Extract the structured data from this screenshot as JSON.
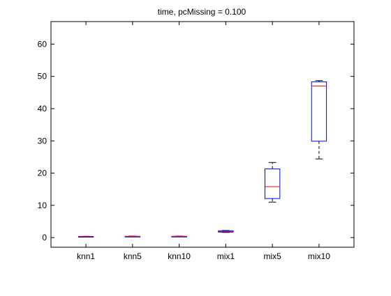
{
  "chart_data": {
    "type": "box",
    "title": "time, pcMissing = 0.100",
    "xlabel": "",
    "ylabel": "",
    "categories": [
      "knn1",
      "knn5",
      "knn10",
      "mix1",
      "mix5",
      "mix10"
    ],
    "ylim": [
      -3,
      67
    ],
    "yticks": [
      0,
      10,
      20,
      30,
      40,
      50,
      60
    ],
    "grid": false,
    "legend": "none",
    "colors": {
      "box": "#0000ff",
      "median": "#ff0000",
      "whisker": "#000000",
      "axes": "#000000"
    },
    "boxes": [
      {
        "category": "knn1",
        "whisker_low": 0.2,
        "q1": 0.25,
        "median": 0.3,
        "q3": 0.35,
        "whisker_high": 0.4
      },
      {
        "category": "knn5",
        "whisker_low": 0.25,
        "q1": 0.3,
        "median": 0.35,
        "q3": 0.4,
        "whisker_high": 0.45
      },
      {
        "category": "knn10",
        "whisker_low": 0.25,
        "q1": 0.3,
        "median": 0.35,
        "q3": 0.4,
        "whisker_high": 0.45
      },
      {
        "category": "mix1",
        "whisker_low": 1.6,
        "q1": 1.7,
        "median": 1.9,
        "q3": 2.1,
        "whisker_high": 2.2
      },
      {
        "category": "mix5",
        "whisker_low": 11.0,
        "q1": 12.1,
        "median": 15.8,
        "q3": 21.3,
        "whisker_high": 23.3
      },
      {
        "category": "mix10",
        "whisker_low": 24.4,
        "q1": 29.9,
        "median": 47.0,
        "q3": 48.3,
        "whisker_high": 48.7
      }
    ]
  }
}
